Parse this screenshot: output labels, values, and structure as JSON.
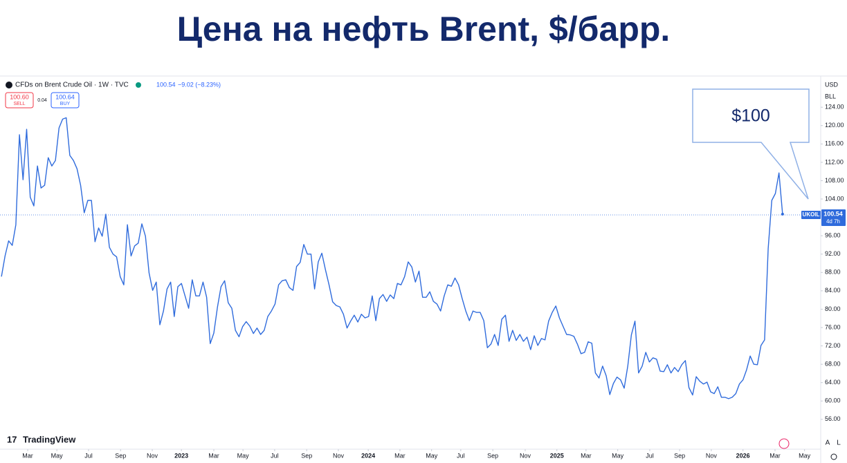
{
  "chart_data": {
    "type": "line",
    "title": "Цена на нефть Brent, $/барр.",
    "symbol": "CFDs on Brent Crude Oil · 1W · TVC",
    "quote": "100.54",
    "change": "−9.02 (−8.23%)",
    "sell_price": "100.60",
    "sell_label": "SELL",
    "spread": "0.04",
    "buy_price": "100.64",
    "buy_label": "BUY",
    "currency": "USD",
    "unit": "BLL",
    "ticker": "UKOIL",
    "last_price": 100.54,
    "countdown": "4d 7h",
    "annotation": "$100",
    "brand": "TradingView",
    "auto_label": "A",
    "log_label": "L",
    "color": "#2f6bdc",
    "grid": false,
    "series": [
      {
        "name": "UKOIL",
        "color": "#2f6bdc",
        "values": [
          87.1,
          91.6,
          94.9,
          93.9,
          98.4,
          118,
          108.2,
          119.2,
          104.4,
          102.5,
          111.2,
          106.4,
          107,
          113,
          111.2,
          112.4,
          119.5,
          121.4,
          121.7,
          113.5,
          112.4,
          110.6,
          107,
          101,
          103.7,
          103.7,
          94.7,
          97.7,
          95.9,
          100.7,
          93.5,
          92,
          91.4,
          87.1,
          85.3,
          98.4,
          91.6,
          93.8,
          94.4,
          98.6,
          95.9,
          87.9,
          84.1,
          85.9,
          76.6,
          79.6,
          84.4,
          85.9,
          78.4,
          84.9,
          85.6,
          82.9,
          80.2,
          86.4,
          82.9,
          82.9,
          85.9,
          82.6,
          72.5,
          74.8,
          80.4,
          84.9,
          86.2,
          81.4,
          80.2,
          75.4,
          74,
          76.2,
          77.3,
          76.3,
          74.7,
          75.9,
          74.5,
          75.4,
          78.4,
          79.6,
          81.1,
          85.3,
          86.2,
          86.4,
          84.7,
          84.1,
          89.3,
          90.2,
          94.1,
          92,
          92,
          84.4,
          90.3,
          92.2,
          88.6,
          85.3,
          81.6,
          80.8,
          80.5,
          78.9,
          75.9,
          77.4,
          78.7,
          77.2,
          78.9,
          78.1,
          78.4,
          82.9,
          77.5,
          82.3,
          83.2,
          81.7,
          83.1,
          82.3,
          85.6,
          85.3,
          87.1,
          90.3,
          89.2,
          85.9,
          88.3,
          82.6,
          82.6,
          83.8,
          81.7,
          81.1,
          79.6,
          82.9,
          85.3,
          85,
          86.8,
          85.3,
          82.3,
          79.6,
          77.5,
          79.6,
          79.3,
          79.3,
          77.5,
          71.6,
          72.4,
          74.5,
          72.1,
          77.8,
          78.7,
          73,
          75.4,
          73.2,
          74.5,
          73,
          73.9,
          71.2,
          74.2,
          72.1,
          73.6,
          73.3,
          77.4,
          79.3,
          80.7,
          78.1,
          76.3,
          74.5,
          74.4,
          74.1,
          72.4,
          70.3,
          70.6,
          72.9,
          72.6,
          66.1,
          65,
          67.6,
          65.5,
          61.4,
          63.8,
          65.2,
          64.6,
          62.8,
          67.6,
          74.4,
          77.4,
          66.1,
          67.6,
          70.6,
          68.5,
          69.4,
          69.1,
          66.5,
          66.4,
          67.9,
          66.1,
          67.3,
          66.4,
          67.9,
          68.8,
          62.9,
          61.3,
          65.3,
          64.3,
          63.7,
          64.1,
          62,
          61.6,
          63.1,
          60.8,
          60.8,
          60.5,
          60.8,
          61.6,
          63.7,
          64.6,
          66.8,
          69.8,
          68,
          67.9,
          72.1,
          73.3,
          93.2,
          103.7,
          105.2,
          109.7,
          100.7
        ]
      }
    ],
    "xlim": [
      -0.4,
      227.4
    ],
    "xticks": [
      {
        "value": 7.3,
        "label": "Mar"
      },
      {
        "value": 15.4,
        "label": "May"
      },
      {
        "value": 24.2,
        "label": "Jul"
      },
      {
        "value": 33.1,
        "label": "Sep"
      },
      {
        "value": 41.9,
        "label": "Nov"
      },
      {
        "value": 50,
        "label": "2023"
      },
      {
        "value": 59,
        "label": "Mar"
      },
      {
        "value": 67.1,
        "label": "May"
      },
      {
        "value": 75.9,
        "label": "Jul"
      },
      {
        "value": 84.8,
        "label": "Sep"
      },
      {
        "value": 93.6,
        "label": "Nov"
      },
      {
        "value": 101.9,
        "label": "2024"
      },
      {
        "value": 110.7,
        "label": "Mar"
      },
      {
        "value": 119.5,
        "label": "May"
      },
      {
        "value": 127.6,
        "label": "Jul"
      },
      {
        "value": 136.5,
        "label": "Sep"
      },
      {
        "value": 145.5,
        "label": "Nov"
      },
      {
        "value": 154.3,
        "label": "2025"
      },
      {
        "value": 162.4,
        "label": "Mar"
      },
      {
        "value": 171.2,
        "label": "May"
      },
      {
        "value": 180.1,
        "label": "Jul"
      },
      {
        "value": 188.4,
        "label": "Sep"
      },
      {
        "value": 197.2,
        "label": "Nov"
      },
      {
        "value": 206,
        "label": "2026"
      },
      {
        "value": 214.9,
        "label": "Mar"
      },
      {
        "value": 223.1,
        "label": "May"
      }
    ],
    "ylim": [
      49.5,
      130.5
    ],
    "yticks": [
      {
        "value": 56,
        "label": "56.00"
      },
      {
        "value": 60,
        "label": "60.00"
      },
      {
        "value": 64,
        "label": "64.00"
      },
      {
        "value": 68,
        "label": "68.00"
      },
      {
        "value": 72,
        "label": "72.00"
      },
      {
        "value": 76,
        "label": "76.00"
      },
      {
        "value": 80,
        "label": "80.00"
      },
      {
        "value": 84,
        "label": "84.00"
      },
      {
        "value": 88,
        "label": "88.00"
      },
      {
        "value": 92,
        "label": "92.00"
      },
      {
        "value": 96,
        "label": "96.00"
      },
      {
        "value": 104,
        "label": "104.00"
      },
      {
        "value": 108,
        "label": "108.00"
      },
      {
        "value": 112,
        "label": "112.00"
      },
      {
        "value": 116,
        "label": "116.00"
      },
      {
        "value": 120,
        "label": "120.00"
      },
      {
        "value": 124,
        "label": "124.00"
      }
    ]
  }
}
